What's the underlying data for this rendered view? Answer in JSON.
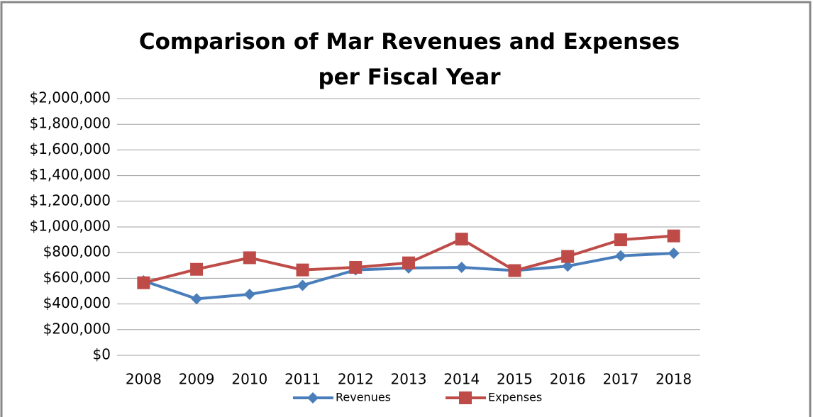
{
  "chart_data": {
    "type": "line",
    "title": "Comparison of Mar Revenues and Expenses per Fiscal Year",
    "categories": [
      "2008",
      "2009",
      "2010",
      "2011",
      "2012",
      "2013",
      "2014",
      "2015",
      "2016",
      "2017",
      "2018"
    ],
    "series": [
      {
        "name": "Revenues",
        "color": "#4a7ebb",
        "marker": "diamond",
        "values": [
          580000,
          440000,
          475000,
          545000,
          665000,
          680000,
          685000,
          660000,
          695000,
          775000,
          795000
        ]
      },
      {
        "name": "Expenses",
        "color": "#be4b48",
        "marker": "square",
        "values": [
          565000,
          670000,
          760000,
          665000,
          685000,
          720000,
          905000,
          660000,
          770000,
          900000,
          930000
        ]
      }
    ],
    "ylim": [
      0,
      2000000
    ],
    "yticks": [
      {
        "value": 0,
        "label": "$0"
      },
      {
        "value": 200000,
        "label": "$200,000"
      },
      {
        "value": 400000,
        "label": "$400,000"
      },
      {
        "value": 600000,
        "label": "$600,000"
      },
      {
        "value": 800000,
        "label": "$800,000"
      },
      {
        "value": 1000000,
        "label": "$1,000,000"
      },
      {
        "value": 1200000,
        "label": "$1,200,000"
      },
      {
        "value": 1400000,
        "label": "$1,400,000"
      },
      {
        "value": 1600000,
        "label": "$1,600,000"
      },
      {
        "value": 1800000,
        "label": "$1,800,000"
      },
      {
        "value": 2000000,
        "label": "$2,000,000"
      }
    ],
    "grid": true,
    "legend": "bottom"
  }
}
